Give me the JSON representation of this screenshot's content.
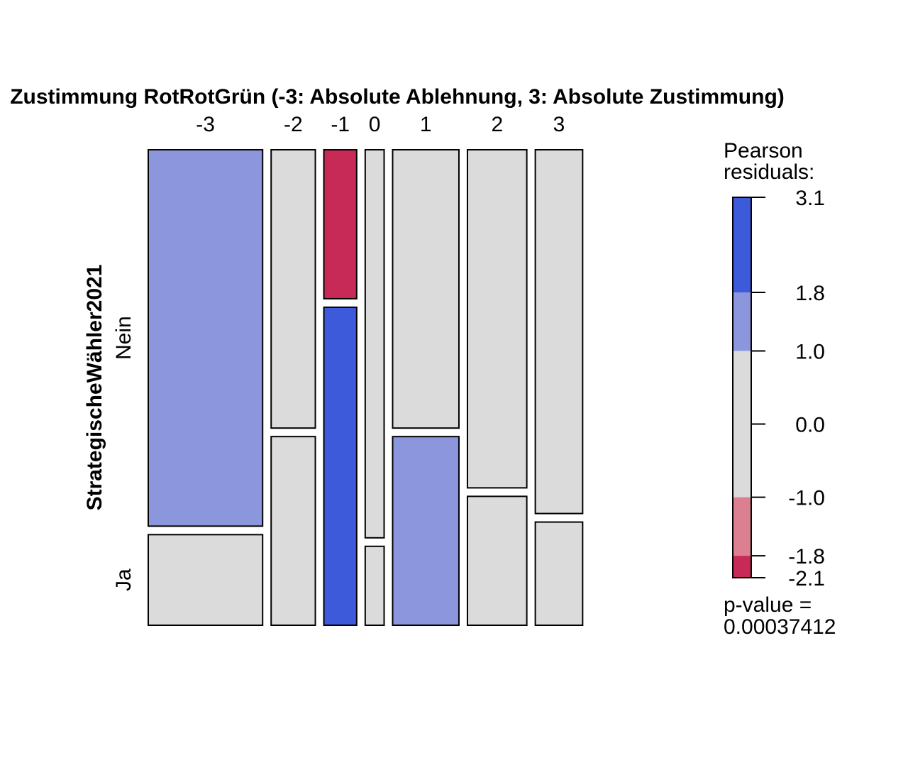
{
  "chart_data": {
    "type": "mosaic",
    "title": "Zustimmung RotRotGrün (-3: Absolute Ablehnung, 3: Absolute Zustimmung)",
    "xvar_label": "",
    "yvar_label": "StrategischeWähler2021",
    "categories": [
      "-3",
      "-2",
      "-1",
      "0",
      "1",
      "2",
      "3"
    ],
    "column_shares": [
      0.2696,
      0.1042,
      0.0774,
      0.0446,
      0.1563,
      0.1399,
      0.1116
    ],
    "rows": [
      "Nein",
      "Ja"
    ],
    "nein_share": [
      0.806,
      0.596,
      0.319,
      0.831,
      0.596,
      0.724,
      0.779
    ],
    "residual_band": [
      [
        2,
        0
      ],
      [
        0,
        0
      ],
      [
        -2,
        3
      ],
      [
        0,
        0
      ],
      [
        0,
        2
      ],
      [
        0,
        0
      ],
      [
        0,
        0
      ]
    ],
    "band_colors": {
      "3": "#3d5adb",
      "2": "#8c96dc",
      "0": "#dbdbdb",
      "-1": "#dc7f90",
      "-2": "#c72a56"
    },
    "legend": {
      "title_line1": "Pearson",
      "title_line2": "residuals:",
      "min": -2.1,
      "max": 3.1,
      "ticks": [
        "3.1",
        "1.8",
        "1.0",
        "0.0",
        "-1.0",
        "-1.8",
        "-2.1"
      ],
      "tick_values": [
        3.1,
        1.8,
        1.0,
        0.0,
        -1.0,
        -1.8,
        -2.1
      ],
      "segments": [
        {
          "from": 1.8,
          "to": 3.1,
          "band": "3"
        },
        {
          "from": 1.0,
          "to": 1.8,
          "band": "2"
        },
        {
          "from": -1.0,
          "to": 1.0,
          "band": "0"
        },
        {
          "from": -1.8,
          "to": -1.0,
          "band": "-1"
        },
        {
          "from": -2.1,
          "to": -1.8,
          "band": "-2"
        }
      ],
      "pvalue_label": "p-value =",
      "pvalue": "0.00037412"
    }
  }
}
